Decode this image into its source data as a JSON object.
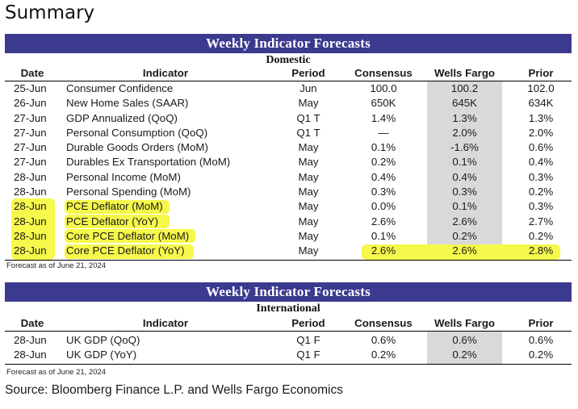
{
  "title": "Summary",
  "domestic": {
    "banner": "Weekly Indicator Forecasts",
    "region": "Domestic",
    "headers": {
      "date": "Date",
      "indicator": "Indicator",
      "period": "Period",
      "consensus": "Consensus",
      "wells_fargo": "Wells Fargo",
      "prior": "Prior"
    },
    "rows": [
      {
        "date": "25-Jun",
        "indicator": "Consumer Confidence",
        "period": "Jun",
        "consensus": "100.0",
        "wells_fargo": "100.2",
        "prior": "102.0"
      },
      {
        "date": "26-Jun",
        "indicator": "New Home Sales (SAAR)",
        "period": "May",
        "consensus": "650K",
        "wells_fargo": "645K",
        "prior": "634K"
      },
      {
        "date": "27-Jun",
        "indicator": "GDP Annualized (QoQ)",
        "period": "Q1 T",
        "consensus": "1.4%",
        "wells_fargo": "1.3%",
        "prior": "1.3%"
      },
      {
        "date": "27-Jun",
        "indicator": "Personal Consumption (QoQ)",
        "period": "Q1 T",
        "consensus": "—",
        "wells_fargo": "2.0%",
        "prior": "2.0%"
      },
      {
        "date": "27-Jun",
        "indicator": "Durable Goods Orders (MoM)",
        "period": "May",
        "consensus": "0.1%",
        "wells_fargo": "-1.6%",
        "prior": "0.6%"
      },
      {
        "date": "27-Jun",
        "indicator": "Durables Ex Transportation (MoM)",
        "period": "May",
        "consensus": "0.2%",
        "wells_fargo": "0.1%",
        "prior": "0.4%"
      },
      {
        "date": "28-Jun",
        "indicator": "Personal Income (MoM)",
        "period": "May",
        "consensus": "0.4%",
        "wells_fargo": "0.4%",
        "prior": "0.3%"
      },
      {
        "date": "28-Jun",
        "indicator": "Personal  Spending (MoM)",
        "period": "May",
        "consensus": "0.3%",
        "wells_fargo": "0.3%",
        "prior": "0.2%"
      },
      {
        "date": "28-Jun",
        "indicator": "PCE Deflator (MoM)",
        "period": "May",
        "consensus": "0.0%",
        "wells_fargo": "0.1%",
        "prior": "0.3%"
      },
      {
        "date": "28-Jun",
        "indicator": "PCE Deflator (YoY)",
        "period": "May",
        "consensus": "2.6%",
        "wells_fargo": "2.6%",
        "prior": "2.7%"
      },
      {
        "date": "28-Jun",
        "indicator": "Core PCE Deflator (MoM)",
        "period": "May",
        "consensus": "0.1%",
        "wells_fargo": "0.2%",
        "prior": "0.2%"
      },
      {
        "date": "28-Jun",
        "indicator": "Core PCE Deflator (YoY)",
        "period": "May",
        "consensus": "2.6%",
        "wells_fargo": "2.6%",
        "prior": "2.8%"
      }
    ],
    "note": "Forecast as of June 21, 2024"
  },
  "international": {
    "banner": "Weekly Indicator Forecasts",
    "region": "International",
    "headers": {
      "date": "Date",
      "indicator": "Indicator",
      "period": "Period",
      "consensus": "Consensus",
      "wells_fargo": "Wells Fargo",
      "prior": "Prior"
    },
    "rows": [
      {
        "date": "28-Jun",
        "indicator": "UK GDP (QoQ)",
        "period": "Q1 F",
        "consensus": "0.6%",
        "wells_fargo": "0.6%",
        "prior": "0.6%"
      },
      {
        "date": "28-Jun",
        "indicator": "UK GDP (YoY)",
        "period": "Q1 F",
        "consensus": "0.2%",
        "wells_fargo": "0.2%",
        "prior": "0.2%"
      }
    ],
    "note": "Forecast as of June 21, 2024"
  },
  "source": "Source: Bloomberg Finance L.P. and Wells Fargo Economics",
  "colors": {
    "banner": "#3b3a8f",
    "wells_fargo_shade": "#d9d9d9",
    "highlight": "#f6f84b"
  }
}
